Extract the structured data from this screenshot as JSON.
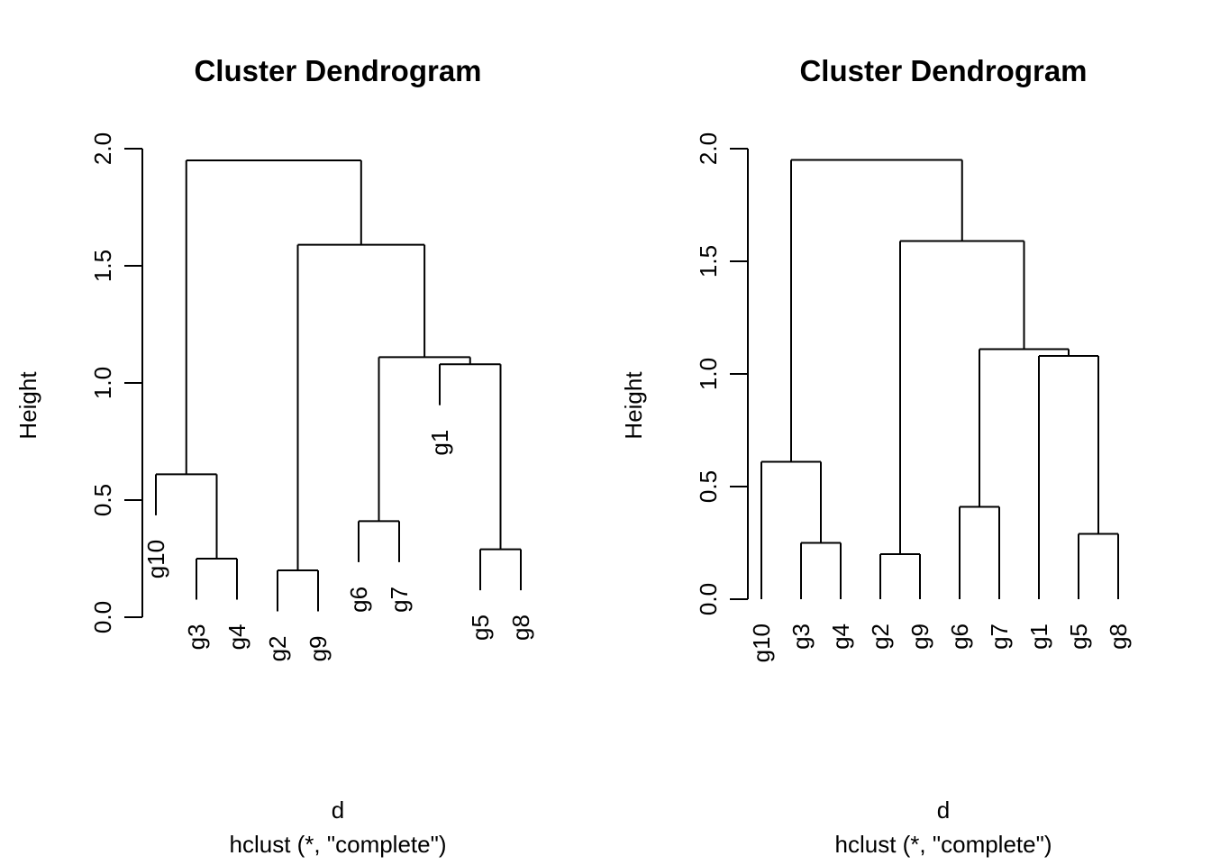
{
  "figure": {
    "background": "#ffffff",
    "line_color": "#000000",
    "text_color": "#000000"
  },
  "chart_data": [
    {
      "type": "dendrogram",
      "title": "Cluster Dendrogram",
      "xlabel_line1": "d",
      "xlabel_line2": "hclust (*, \"complete\")",
      "ylabel": "Height",
      "ylim": [
        0.0,
        2.0
      ],
      "yticks": [
        "0.0",
        "0.5",
        "1.0",
        "1.5",
        "2.0"
      ],
      "grid": false,
      "leaf_label_style": "hanging",
      "hang": 0.175,
      "leaf_order": [
        "g10",
        "g3",
        "g4",
        "g2",
        "g9",
        "g6",
        "g7",
        "g1",
        "g5",
        "g8"
      ],
      "merges": [
        {
          "children": [
            "g2",
            "g9"
          ],
          "height": 0.2
        },
        {
          "children": [
            "g3",
            "g4"
          ],
          "height": 0.25
        },
        {
          "children": [
            "g5",
            "g8"
          ],
          "height": 0.29
        },
        {
          "children": [
            "g6",
            "g7"
          ],
          "height": 0.41
        },
        {
          "children": [
            "g10",
            1
          ],
          "height": 0.61
        },
        {
          "children": [
            "g1",
            2
          ],
          "height": 1.08
        },
        {
          "children": [
            3,
            5
          ],
          "height": 1.11
        },
        {
          "children": [
            0,
            6
          ],
          "height": 1.59
        },
        {
          "children": [
            4,
            7
          ],
          "height": 1.95
        }
      ]
    },
    {
      "type": "dendrogram",
      "title": "Cluster Dendrogram",
      "xlabel_line1": "d",
      "xlabel_line2": "hclust (*, \"complete\")",
      "ylabel": "Height",
      "ylim": [
        0.0,
        2.0
      ],
      "yticks": [
        "0.0",
        "0.5",
        "1.0",
        "1.5",
        "2.0"
      ],
      "grid": false,
      "leaf_label_style": "aligned",
      "hang": 0,
      "leaf_order": [
        "g10",
        "g3",
        "g4",
        "g2",
        "g9",
        "g6",
        "g7",
        "g1",
        "g5",
        "g8"
      ],
      "merges": [
        {
          "children": [
            "g2",
            "g9"
          ],
          "height": 0.2
        },
        {
          "children": [
            "g3",
            "g4"
          ],
          "height": 0.25
        },
        {
          "children": [
            "g5",
            "g8"
          ],
          "height": 0.29
        },
        {
          "children": [
            "g6",
            "g7"
          ],
          "height": 0.41
        },
        {
          "children": [
            "g10",
            1
          ],
          "height": 0.61
        },
        {
          "children": [
            "g1",
            2
          ],
          "height": 1.08
        },
        {
          "children": [
            3,
            5
          ],
          "height": 1.11
        },
        {
          "children": [
            0,
            6
          ],
          "height": 1.59
        },
        {
          "children": [
            4,
            7
          ],
          "height": 1.95
        }
      ]
    }
  ]
}
